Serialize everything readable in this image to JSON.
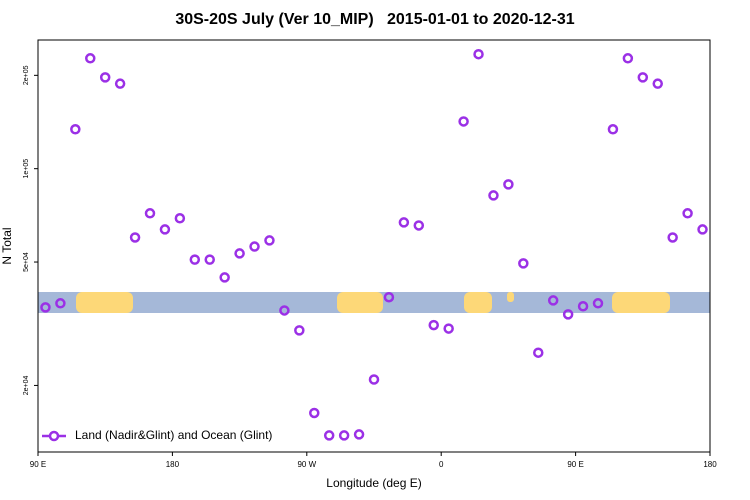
{
  "chart_data": {
    "type": "scatter",
    "title": "30S-20S July (Ver 10_MIP)   2015-01-01 to 2020-12-31",
    "x_label": "Longitude (deg E)",
    "y_label": "N Total",
    "x": [
      95,
      105,
      115,
      125,
      135,
      145,
      155,
      165,
      175,
      185,
      195,
      205,
      215,
      225,
      235,
      245,
      255,
      265,
      275,
      285,
      295,
      305,
      315,
      325,
      335,
      345,
      355,
      365,
      375,
      385,
      395,
      405,
      415,
      425,
      435,
      445,
      455,
      465,
      475,
      485,
      495,
      505,
      515,
      525,
      535
    ],
    "series": [
      {
        "name": "Land (Nadir&Glint) and Ocean (Glint)",
        "color": "#9b30e6",
        "values": [
          35700,
          36800,
          134000,
          227000,
          197000,
          188000,
          60000,
          71800,
          63700,
          69200,
          50900,
          50900,
          44600,
          53300,
          56100,
          58700,
          34900,
          30100,
          16300,
          13800,
          13800,
          13900,
          20900,
          38500,
          67100,
          65600,
          31300,
          30500,
          142000,
          234000,
          82000,
          89000,
          49500,
          25500,
          37600,
          33900,
          36000,
          36800,
          134000,
          227000,
          197000,
          188000,
          60000,
          71800,
          63700
        ]
      }
    ],
    "xlim": [
      90,
      540
    ],
    "xticks": [
      {
        "value": 90,
        "label": "90 E"
      },
      180,
      {
        "value": 270,
        "label": "90 W"
      },
      {
        "value": 360,
        "label": "0"
      },
      {
        "value": 450,
        "label": "90 E"
      },
      {
        "value": 540,
        "label": "180"
      }
    ],
    "ylim": [
      12200,
      260000
    ],
    "yticks": [
      {
        "value": 200000,
        "label": "2e+05"
      },
      {
        "value": 100000,
        "label": "1e+05"
      },
      {
        "value": 50000,
        "label": "5e+04"
      },
      {
        "value": 20000,
        "label": "2e+04"
      }
    ],
    "log_y": true,
    "legend": "bottom-left"
  }
}
